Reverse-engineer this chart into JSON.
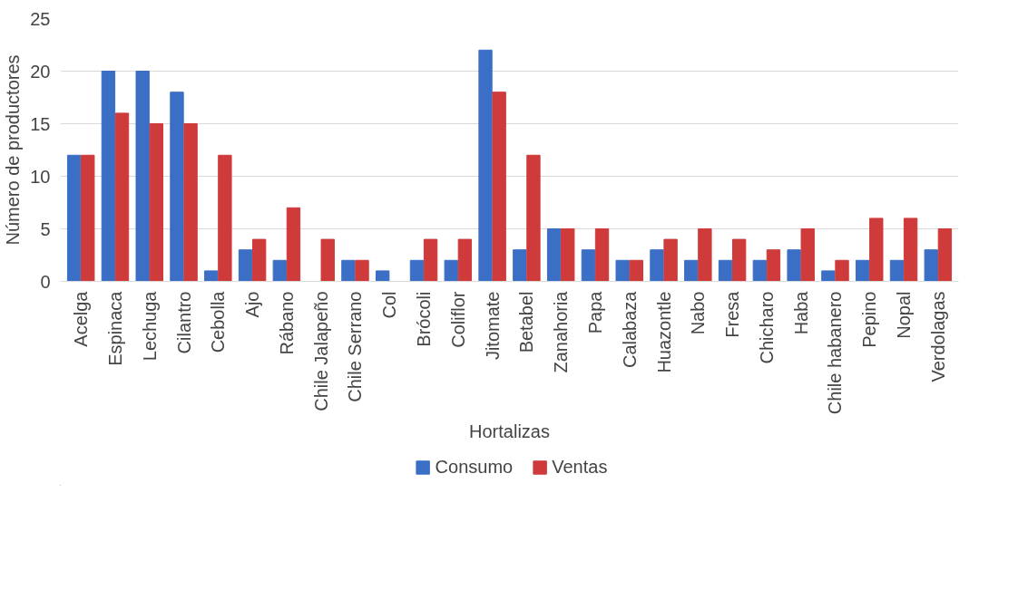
{
  "chart_data": {
    "type": "bar",
    "xlabel": "Hortalizas",
    "ylabel": "Número de productores",
    "categories": [
      "Acelga",
      "Espinaca",
      "Lechuga",
      "Cilantro",
      "Cebolla",
      "Ajo",
      "Rábano",
      "Chile Jalapeño",
      "Chile Serrano",
      "Col",
      "Brócoli",
      "Coliflor",
      "Jitomate",
      "Betabel",
      "Zanahoria",
      "Papa",
      "Calabaza",
      "Huazontle",
      "Nabo",
      "Fresa",
      "Chicharo",
      "Haba",
      "Chile habanero",
      "Pepino",
      "Nopal",
      "Verdolagas"
    ],
    "series": [
      {
        "name": "Consumo",
        "color": "#3b6fc6",
        "values": [
          12,
          20,
          20,
          18,
          1,
          3,
          2,
          0,
          2,
          1,
          2,
          2,
          22,
          3,
          5,
          3,
          2,
          3,
          2,
          2,
          2,
          3,
          1,
          2,
          2,
          3
        ]
      },
      {
        "name": "Ventas",
        "color": "#cf3a3a",
        "values": [
          12,
          16,
          15,
          15,
          12,
          4,
          7,
          4,
          2,
          0,
          4,
          4,
          18,
          12,
          5,
          5,
          2,
          4,
          5,
          4,
          3,
          5,
          2,
          6,
          6,
          5
        ]
      }
    ],
    "ylim": [
      0,
      25
    ],
    "yticks": [
      0,
      5,
      10,
      15,
      20,
      25
    ],
    "grid": "y",
    "legend": "bottom"
  }
}
